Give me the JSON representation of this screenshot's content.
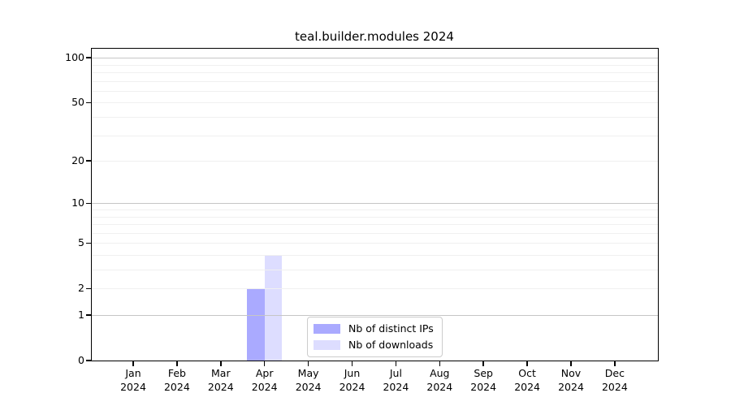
{
  "chart_data": {
    "type": "bar",
    "title": "teal.builder.modules 2024",
    "xlabel": "",
    "ylabel": "",
    "yscale": "log10(1+y)",
    "ylim": [
      0,
      115
    ],
    "yticks": [
      0,
      1,
      2,
      5,
      10,
      20,
      50,
      100
    ],
    "ytick_labels": [
      "0",
      "1",
      "2",
      "5",
      "10",
      "20",
      "50",
      "100"
    ],
    "major_grid_values": [
      1,
      10,
      100
    ],
    "grid": "horizontal major+minor",
    "categories": [
      {
        "month": "Jan",
        "year": "2024"
      },
      {
        "month": "Feb",
        "year": "2024"
      },
      {
        "month": "Mar",
        "year": "2024"
      },
      {
        "month": "Apr",
        "year": "2024"
      },
      {
        "month": "May",
        "year": "2024"
      },
      {
        "month": "Jun",
        "year": "2024"
      },
      {
        "month": "Jul",
        "year": "2024"
      },
      {
        "month": "Aug",
        "year": "2024"
      },
      {
        "month": "Sep",
        "year": "2024"
      },
      {
        "month": "Oct",
        "year": "2024"
      },
      {
        "month": "Nov",
        "year": "2024"
      },
      {
        "month": "Dec",
        "year": "2024"
      }
    ],
    "series": [
      {
        "name": "Nb of distinct IPs",
        "color": "#aaaaff",
        "values": [
          0,
          0,
          0,
          2,
          0,
          0,
          0,
          0,
          0,
          0,
          0,
          0
        ]
      },
      {
        "name": "Nb of downloads",
        "color": "#ddddff",
        "values": [
          0,
          0,
          0,
          4,
          0,
          0,
          0,
          0,
          0,
          0,
          0,
          0
        ]
      }
    ],
    "legend_position": "bottom-center"
  }
}
